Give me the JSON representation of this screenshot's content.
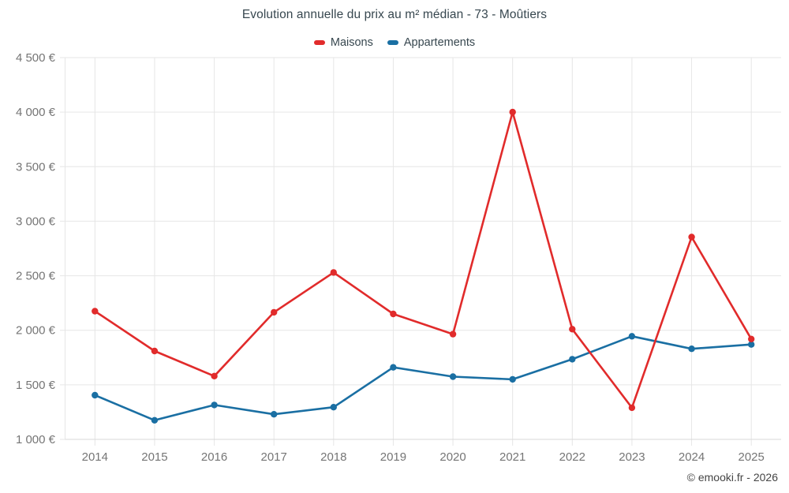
{
  "page": {
    "footer": "© emooki.fr - 2026"
  },
  "chart_data": {
    "type": "line",
    "title": "Evolution annuelle du prix au m² médian - 73 - Moûtiers",
    "categories": [
      "2014",
      "2015",
      "2016",
      "2017",
      "2018",
      "2019",
      "2020",
      "2021",
      "2022",
      "2023",
      "2024",
      "2025"
    ],
    "series": [
      {
        "name": "Maisons",
        "color": "#e12b2b",
        "values": [
          2175,
          1810,
          1580,
          2165,
          2530,
          2150,
          1965,
          4000,
          2010,
          1290,
          2855,
          1920
        ]
      },
      {
        "name": "Appartements",
        "color": "#1a6fa3",
        "values": [
          1405,
          1175,
          1315,
          1230,
          1295,
          1660,
          1575,
          1550,
          1735,
          1945,
          1830,
          1870
        ]
      }
    ],
    "xlabel": "",
    "ylabel": "",
    "ylim": [
      1000,
      4500
    ],
    "y_tick_step": 500,
    "y_tick_suffix": " €",
    "grid": true,
    "legend_position": "top",
    "marker": "circle",
    "colors": {
      "axis_text": "#757575",
      "grid_line": "#e6e6e6",
      "axis_line": "#d9d9d9",
      "title_text": "#37474f"
    }
  }
}
